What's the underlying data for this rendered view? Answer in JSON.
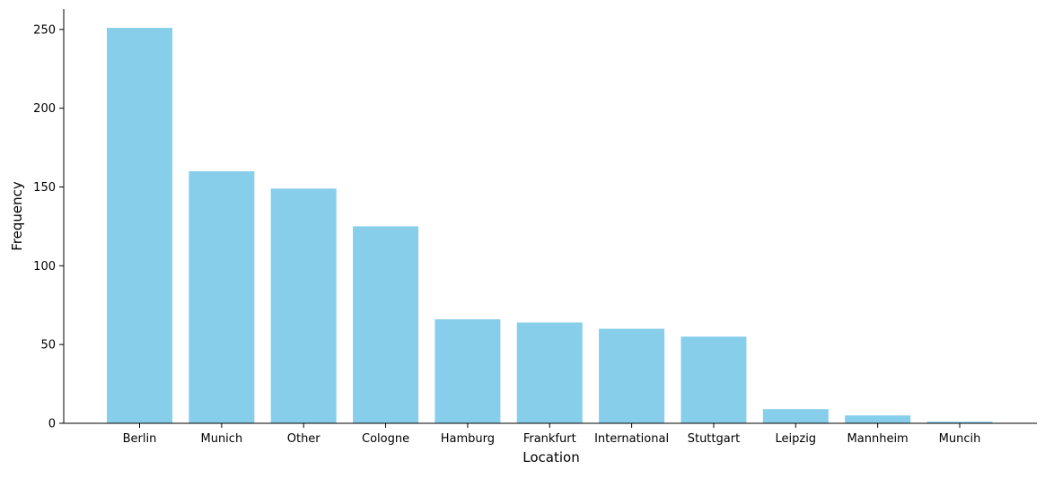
{
  "chart_data": {
    "type": "bar",
    "title": "",
    "xlabel": "Location",
    "ylabel": "Frequency",
    "categories": [
      "Berlin",
      "Munich",
      "Other",
      "Cologne",
      "Hamburg",
      "Frankfurt",
      "International",
      "Stuttgart",
      "Leipzig",
      "Mannheim",
      "Muncih"
    ],
    "values": [
      251,
      160,
      149,
      125,
      66,
      64,
      60,
      55,
      9,
      5,
      1
    ],
    "ylim": [
      0,
      263
    ],
    "yticks": [
      0,
      50,
      100,
      150,
      200,
      250
    ],
    "ytick_labels": [
      "0",
      "50",
      "100",
      "150",
      "200",
      "250"
    ],
    "grid": false,
    "legend": "none",
    "bar_color": "#87CEEB",
    "spines": [
      "left",
      "bottom"
    ]
  }
}
